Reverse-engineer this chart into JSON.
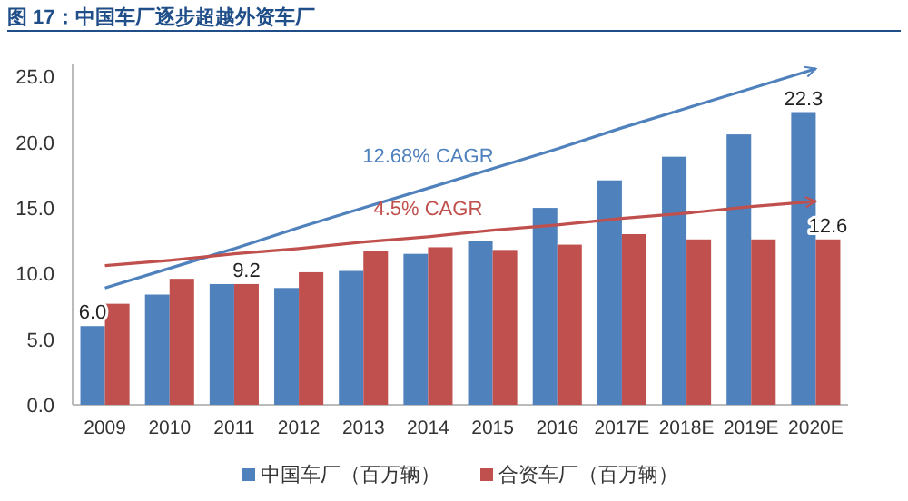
{
  "chart_data": {
    "type": "bar",
    "title": "图 17：中国车厂逐步超越外资车厂",
    "categories": [
      "2009",
      "2010",
      "2011",
      "2012",
      "2013",
      "2014",
      "2015",
      "2016",
      "2017E",
      "2018E",
      "2019E",
      "2020E"
    ],
    "series": [
      {
        "name": "中国车厂（百万辆）",
        "color": "#4f81bd",
        "values": [
          6.0,
          8.4,
          9.2,
          8.9,
          10.2,
          11.5,
          12.5,
          15.0,
          17.1,
          18.9,
          20.6,
          22.3
        ],
        "value_labels": [
          "6.0",
          null,
          null,
          null,
          null,
          null,
          null,
          null,
          null,
          null,
          null,
          "22.3"
        ]
      },
      {
        "name": "合资车厂（百万辆）",
        "color": "#c0504d",
        "values": [
          7.7,
          9.6,
          9.2,
          10.1,
          11.7,
          12.0,
          11.8,
          12.2,
          13.0,
          12.6,
          12.6,
          12.6
        ],
        "value_labels": [
          null,
          null,
          "9.2",
          null,
          null,
          null,
          null,
          null,
          null,
          null,
          null,
          "12.6"
        ]
      },
      {
        "type": "line",
        "color": "#4f81bd",
        "values": [
          8.9,
          10.4,
          11.9,
          13.5,
          15.0,
          16.5,
          18.0,
          19.5,
          21.1,
          22.6,
          24.1,
          25.6
        ]
      },
      {
        "type": "line",
        "color": "#c0504d",
        "values": [
          10.6,
          11.0,
          11.5,
          11.9,
          12.4,
          12.8,
          13.3,
          13.7,
          14.2,
          14.6,
          15.1,
          15.5
        ]
      }
    ],
    "ylim": [
      0,
      26
    ],
    "yticks": [
      {
        "value": 0,
        "label": "0.0"
      },
      {
        "value": 5,
        "label": "5.0"
      },
      {
        "value": 10,
        "label": "10.0"
      },
      {
        "value": 15,
        "label": "15.0"
      },
      {
        "value": 20,
        "label": "20.0"
      },
      {
        "value": 25,
        "label": "25.0"
      }
    ],
    "annotations": [
      "12.68% CAGR",
      "4.5% CAGR"
    ],
    "legend": "bottom"
  }
}
